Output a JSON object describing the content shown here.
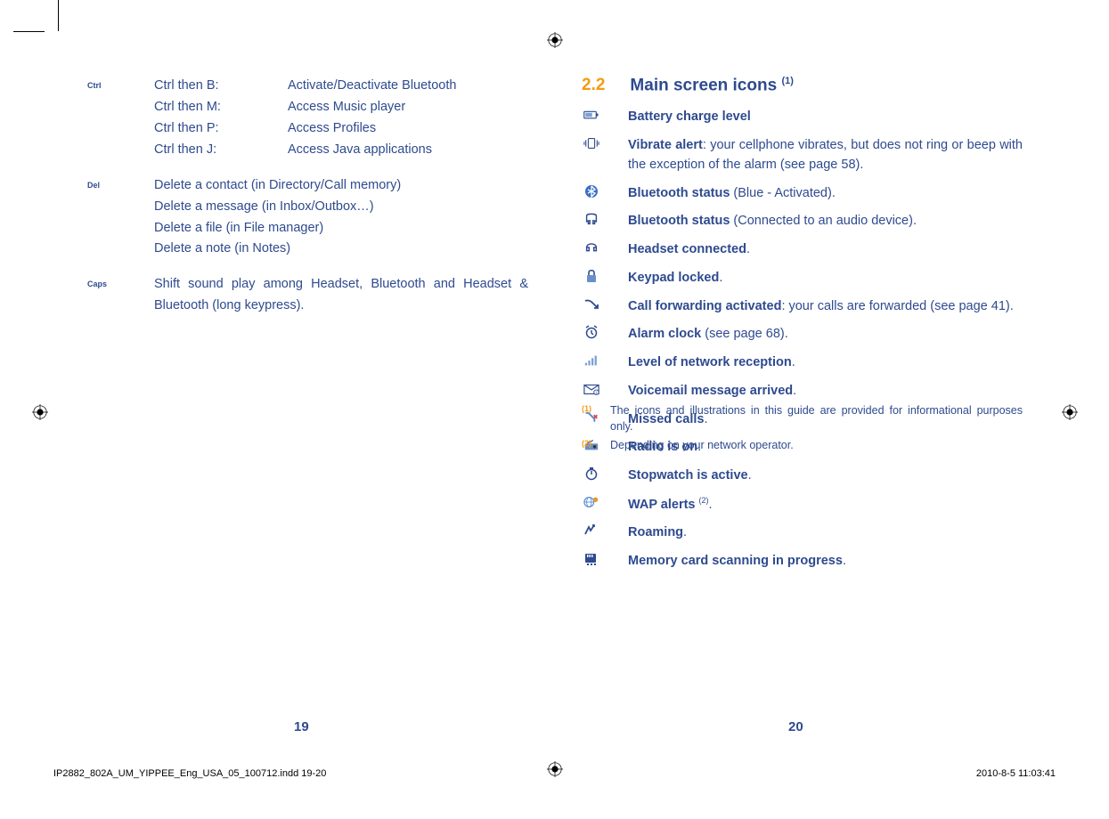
{
  "colors": {
    "text": "#2e4a8f",
    "accent": "#f39c12",
    "black": "#000000"
  },
  "left_page": {
    "shortcuts": {
      "key": "Ctrl",
      "rows": [
        {
          "k": "Ctrl then B:",
          "v": "Activate/Deactivate Bluetooth"
        },
        {
          "k": "Ctrl then M:",
          "v": "Access Music player"
        },
        {
          "k": "Ctrl then P:",
          "v": "Access Profiles"
        },
        {
          "k": "Ctrl then J:",
          "v": "Access Java applications"
        }
      ]
    },
    "del": {
      "key": "Del",
      "lines": [
        "Delete a contact (in Directory/Call memory)",
        "Delete a message (in Inbox/Outbox…)",
        "Delete a file (in File manager)",
        "Delete a note (in Notes)"
      ]
    },
    "caps": {
      "key": "Caps",
      "text": "Shift sound play among Headset, Bluetooth and Headset & Bluetooth (long keypress)."
    },
    "page_num": "19"
  },
  "right_page": {
    "section_num": "2.2",
    "section_title": "Main screen icons ",
    "section_title_sup": "(1)",
    "icons": [
      {
        "icon": "battery",
        "bold": "Battery charge level",
        "rest": ""
      },
      {
        "icon": "vibrate",
        "bold": "Vibrate alert",
        "rest": ": your cellphone vibrates, but does not ring or beep with the exception of the alarm (see page 58)."
      },
      {
        "icon": "bt-on",
        "bold": "Bluetooth status",
        "rest": " (Blue - Activated)."
      },
      {
        "icon": "bt-audio",
        "bold": "Bluetooth status",
        "rest": " (Connected to an audio device)."
      },
      {
        "icon": "headset",
        "bold": "Headset connected",
        "rest": "."
      },
      {
        "icon": "lock",
        "bold": "Keypad locked",
        "rest": "."
      },
      {
        "icon": "forward",
        "bold": "Call forwarding activated",
        "rest": ": your calls are forwarded (see page 41)."
      },
      {
        "icon": "alarm",
        "bold": "Alarm clock",
        "rest": " (see page 68)."
      },
      {
        "icon": "signal",
        "bold": "Level of network reception",
        "rest": "."
      },
      {
        "icon": "voicemail",
        "bold": "Voicemail message arrived",
        "rest": "."
      },
      {
        "icon": "missed",
        "bold": "Missed calls",
        "rest": "."
      },
      {
        "icon": "radio",
        "bold": "Radio is on",
        "rest": "."
      },
      {
        "icon": "stopwatch",
        "bold": "Stopwatch is active",
        "rest": "."
      },
      {
        "icon": "wap",
        "bold": "WAP alerts ",
        "rest": ".",
        "sup": "(2)"
      },
      {
        "icon": "roaming",
        "bold": "Roaming",
        "rest": "."
      },
      {
        "icon": "memcard",
        "bold": "Memory card scanning in progress",
        "rest": "."
      }
    ],
    "footnotes": [
      {
        "num": "(1)",
        "text": "The icons and illustrations in this guide are provided for informational purposes only."
      },
      {
        "num": "(2)",
        "text": "Depending on your network operator."
      }
    ],
    "page_num": "20"
  },
  "footer": {
    "left": "IP2882_802A_UM_YIPPEE_Eng_USA_05_100712.indd   19-20",
    "right": "2010-8-5   11:03:41"
  }
}
